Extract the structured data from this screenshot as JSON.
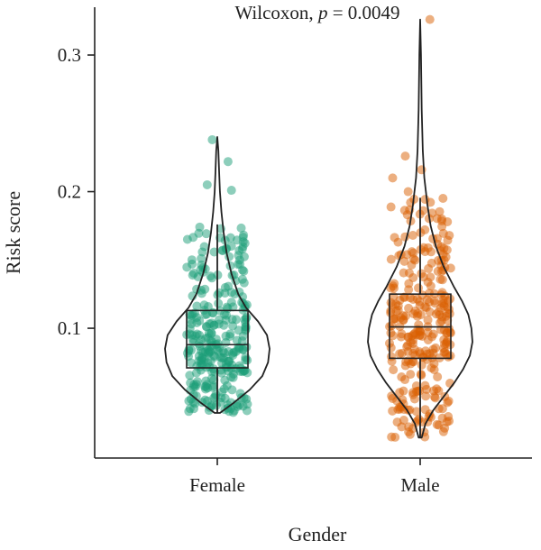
{
  "chart_data": {
    "type": "violin",
    "annotation": {
      "prefix": "Wilcoxon, ",
      "p_symbol": "p",
      "suffix": " = 0.0049"
    },
    "xlabel": "Gender",
    "ylabel": "Risk score",
    "ylim": [
      0.005,
      0.335
    ],
    "yticks": [
      0.1,
      0.2,
      0.3
    ],
    "ytick_labels": [
      "0.1",
      "0.2",
      "0.3"
    ],
    "grid": false,
    "categories": [
      "Female",
      "Male"
    ],
    "groups": [
      {
        "name": "Female",
        "color": "#1b9e77",
        "min": 0.038,
        "q1": 0.071,
        "median": 0.088,
        "q3": 0.113,
        "max": 0.24,
        "outliers": [
          0.201,
          0.205,
          0.222,
          0.238
        ],
        "n_points": 300,
        "violin": {
          "y": [
            0.038,
            0.045,
            0.055,
            0.065,
            0.075,
            0.085,
            0.095,
            0.105,
            0.115,
            0.125,
            0.14,
            0.155,
            0.17,
            0.185,
            0.2,
            0.215,
            0.23,
            0.24
          ],
          "density": [
            0.05,
            0.3,
            0.62,
            0.86,
            0.97,
            1.0,
            0.95,
            0.78,
            0.55,
            0.4,
            0.27,
            0.18,
            0.12,
            0.08,
            0.05,
            0.035,
            0.02,
            0.0
          ]
        }
      },
      {
        "name": "Male",
        "color": "#d95f02",
        "min": 0.02,
        "q1": 0.078,
        "median": 0.101,
        "q3": 0.125,
        "max": 0.326,
        "outliers": [
          0.2,
          0.21,
          0.216,
          0.226,
          0.326
        ],
        "n_points": 300,
        "violin": {
          "y": [
            0.02,
            0.03,
            0.04,
            0.05,
            0.06,
            0.07,
            0.08,
            0.09,
            0.1,
            0.11,
            0.12,
            0.13,
            0.145,
            0.16,
            0.175,
            0.19,
            0.21,
            0.23,
            0.26,
            0.3,
            0.326
          ],
          "density": [
            0.03,
            0.1,
            0.25,
            0.45,
            0.65,
            0.82,
            0.95,
            1.0,
            0.98,
            0.92,
            0.8,
            0.65,
            0.45,
            0.3,
            0.2,
            0.14,
            0.08,
            0.05,
            0.03,
            0.015,
            0.0
          ]
        }
      }
    ]
  }
}
